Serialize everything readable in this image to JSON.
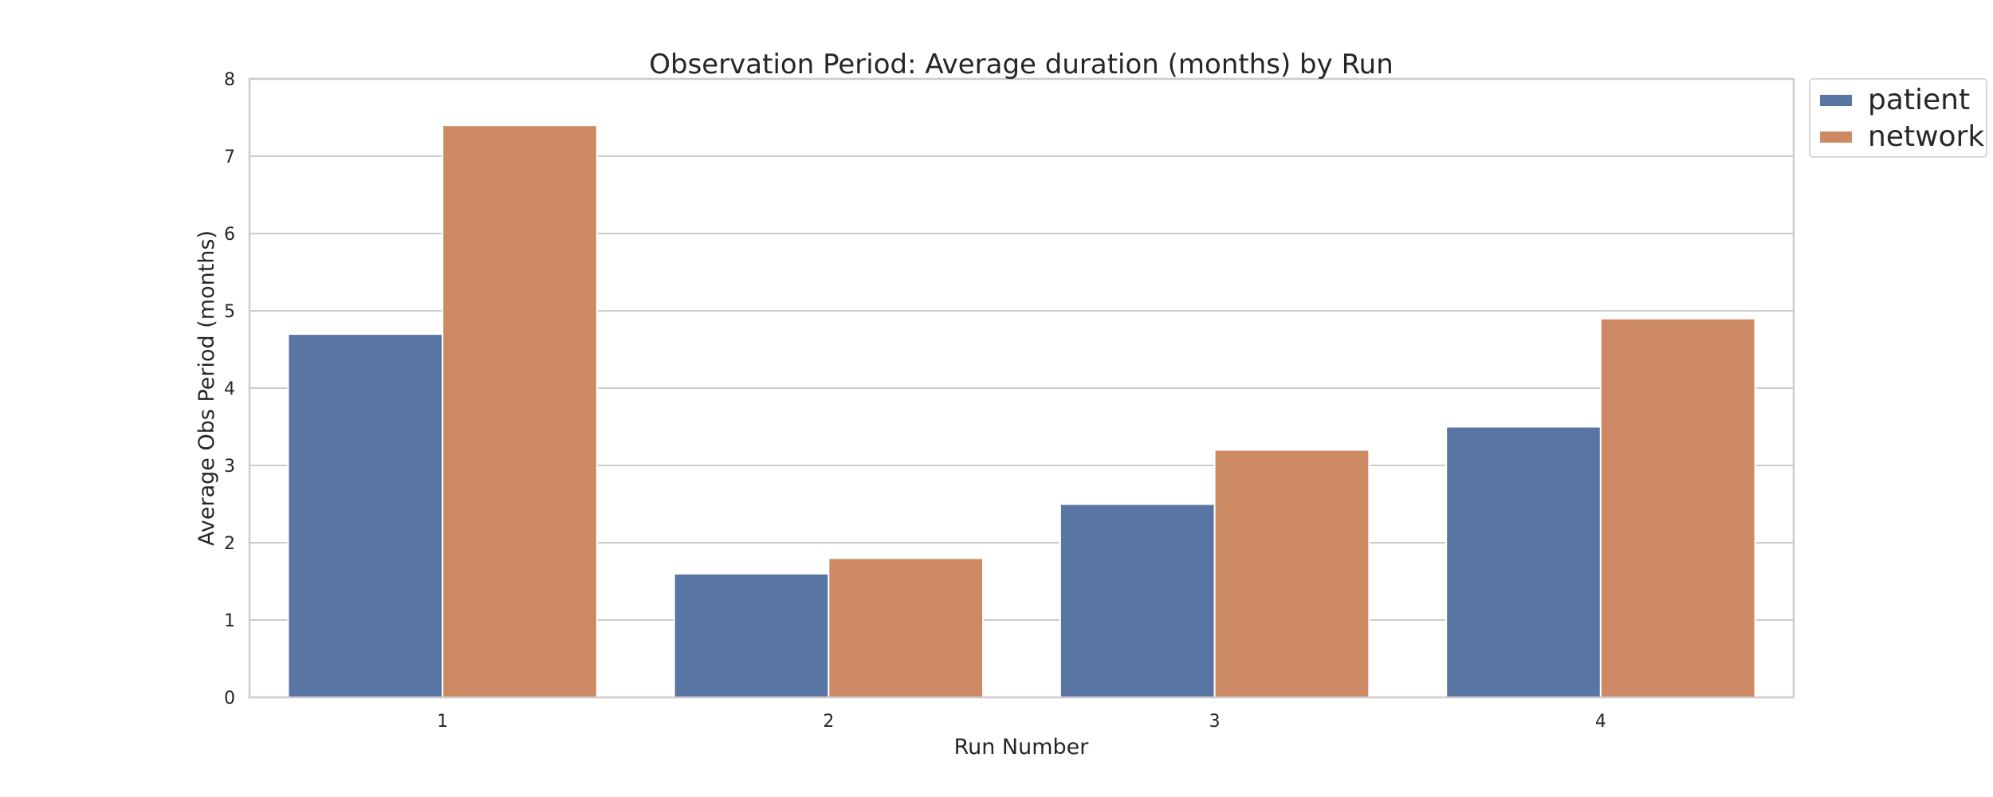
{
  "chart_data": {
    "type": "bar",
    "title": "Observation Period: Average duration (months) by Run",
    "xlabel": "Run Number",
    "ylabel": "Average Obs Period (months)",
    "categories": [
      "1",
      "2",
      "3",
      "4"
    ],
    "series": [
      {
        "name": "patient",
        "values": [
          4.7,
          1.6,
          2.5,
          3.5
        ],
        "color": "#5975a4"
      },
      {
        "name": "network",
        "values": [
          7.4,
          1.8,
          3.2,
          4.9
        ],
        "color": "#cc8963"
      }
    ],
    "ylim": [
      0,
      8
    ],
    "yticks": [
      "0",
      "1",
      "2",
      "3",
      "4",
      "5",
      "6",
      "7",
      "8"
    ],
    "grid": true,
    "legend_position": "outside-top-right"
  }
}
